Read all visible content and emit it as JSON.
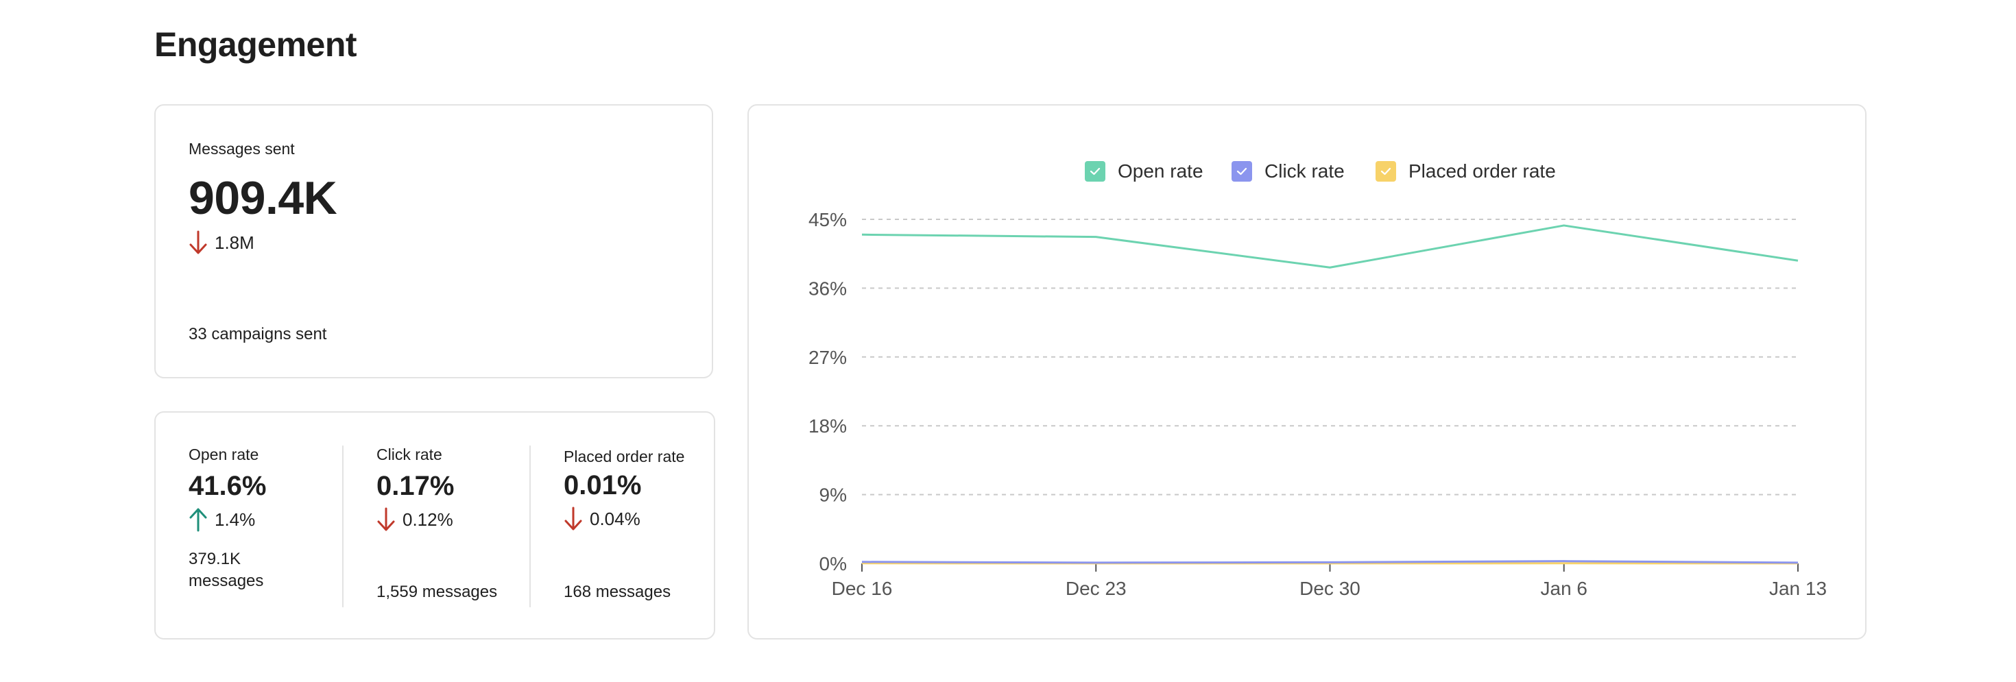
{
  "page": {
    "title": "Engagement"
  },
  "messages_sent": {
    "label": "Messages sent",
    "value": "909.4K",
    "delta": "1.8M",
    "delta_direction": "down",
    "campaigns_count": "33",
    "campaigns_text": "campaigns sent"
  },
  "rates": [
    {
      "label": "Open rate",
      "value": "41.6%",
      "delta": "1.4%",
      "delta_direction": "up",
      "count": "379.1K",
      "count_text": "messages"
    },
    {
      "label": "Click rate",
      "value": "0.17%",
      "delta": "0.12%",
      "delta_direction": "down",
      "count": "1,559",
      "count_text": "messages"
    },
    {
      "label": "Placed order rate",
      "value": "0.01%",
      "delta": "0.04%",
      "delta_direction": "down",
      "count": "168",
      "count_text": "messages"
    }
  ],
  "colors": {
    "down": "#c0392b",
    "up": "#1f8f7a",
    "open_rate": "#6cd3b0",
    "click_rate": "#8b95ee",
    "placed_order_rate": "#f7d269"
  },
  "chart_data": {
    "type": "line",
    "x": [
      "Dec 16",
      "Dec 23",
      "Dec 30",
      "Jan 6",
      "Jan 13"
    ],
    "y_ticks": [
      "0%",
      "9%",
      "18%",
      "27%",
      "36%",
      "45%"
    ],
    "ylim": [
      0,
      45
    ],
    "grid": true,
    "legend_position": "top-center",
    "series": [
      {
        "name": "Open rate",
        "color": "#6cd3b0",
        "values": [
          43.0,
          42.7,
          38.7,
          44.2,
          39.6
        ]
      },
      {
        "name": "Click rate",
        "color": "#8b95ee",
        "values": [
          0.2,
          0.1,
          0.15,
          0.3,
          0.1
        ]
      },
      {
        "name": "Placed order rate",
        "color": "#f7d269",
        "values": [
          0.02,
          0.01,
          0.01,
          0.02,
          0.01
        ]
      }
    ]
  }
}
